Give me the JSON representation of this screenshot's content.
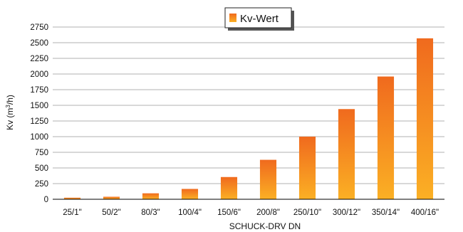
{
  "chart_data": {
    "type": "bar",
    "categories": [
      "25/1\"",
      "50/2\"",
      "80/3\"",
      "100/4\"",
      "150/6\"",
      "200/8\"",
      "250/10\"",
      "300/12\"",
      "350/14\"",
      "400/16\""
    ],
    "series": [
      {
        "name": "Kv-Wert",
        "values": [
          25,
          40,
          95,
          165,
          355,
          630,
          1000,
          1440,
          1960,
          2570
        ]
      }
    ],
    "xlabel": "SCHUCK-DRV DN",
    "ylabel": {
      "base": "Kv (m",
      "sup": "3",
      "tail": "/h)"
    },
    "ylim": [
      0,
      2750
    ],
    "yticks": [
      0,
      250,
      500,
      750,
      1000,
      1250,
      1500,
      1750,
      2000,
      2250,
      2500,
      2750
    ],
    "grid": true,
    "legend_position": "top-center",
    "colors": {
      "bar_top": "#f06a1e",
      "bar_bottom": "#fbb024",
      "grid": "#b0b0b0"
    }
  }
}
